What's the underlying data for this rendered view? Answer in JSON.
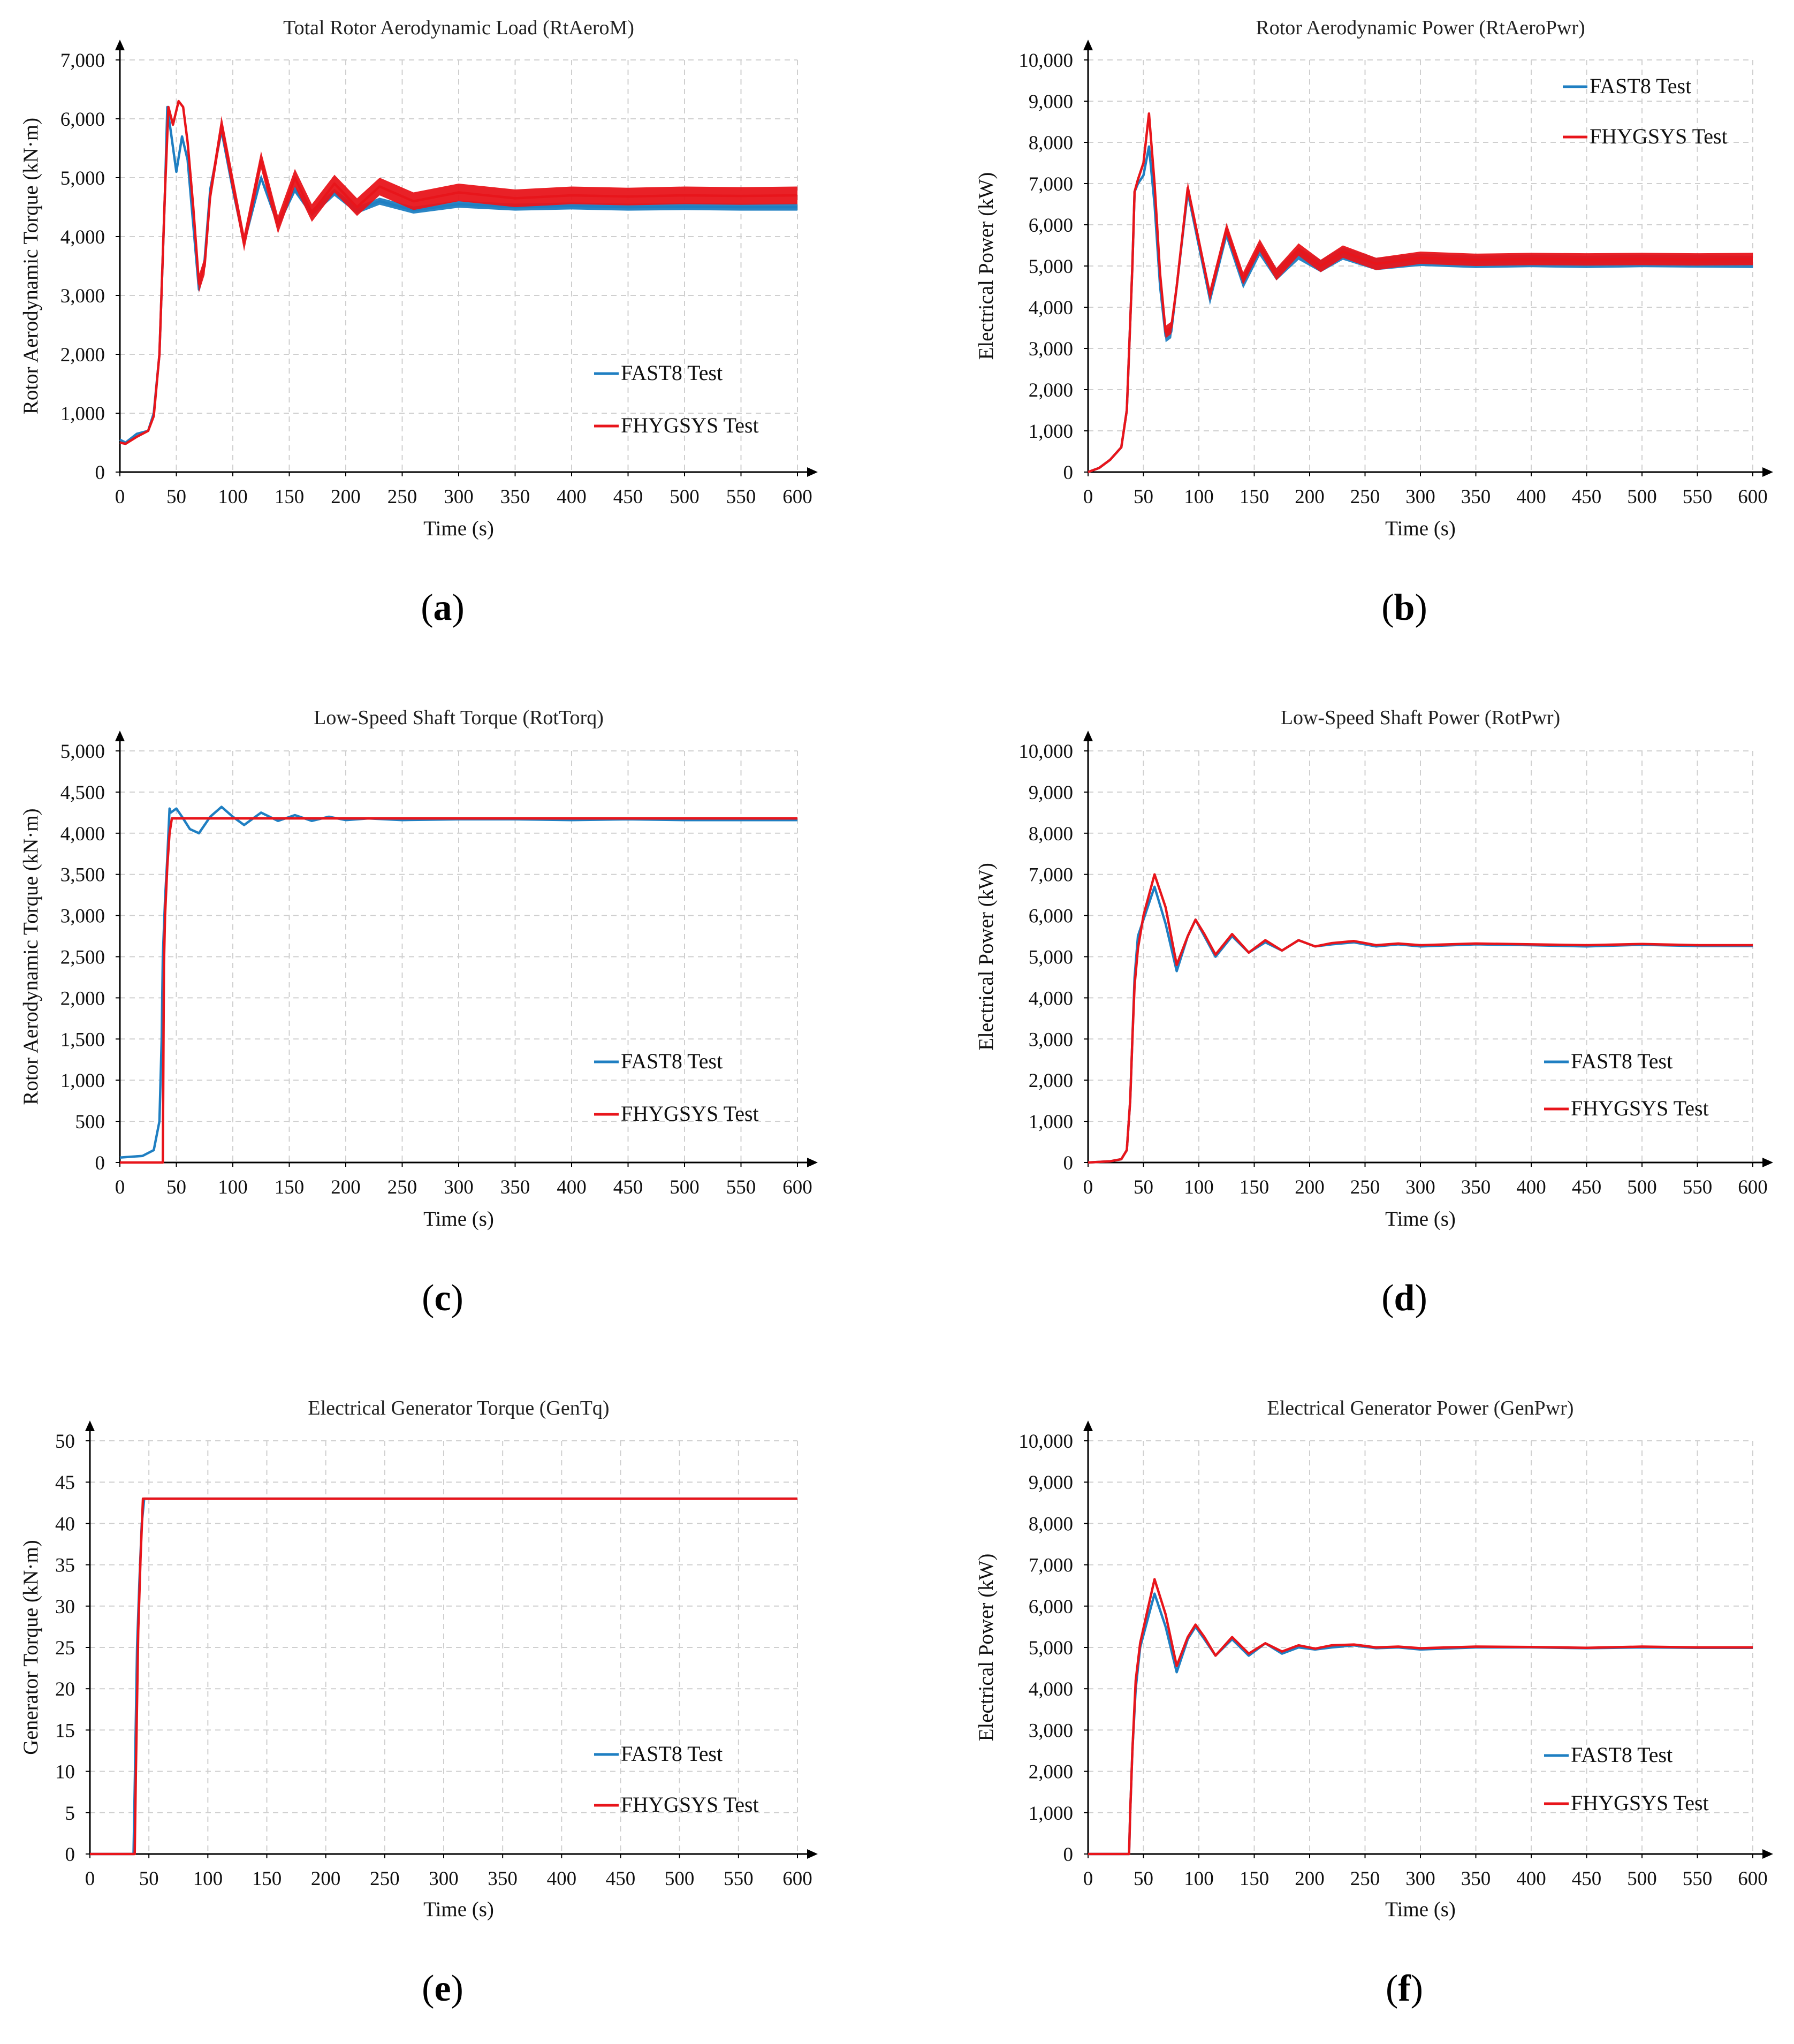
{
  "colors": {
    "fast8": "#1f7fc2",
    "fhygsys": "#e8151b",
    "grid": "#cfcfcf",
    "axis": "#000000"
  },
  "legend": {
    "fast8": "FAST8 Test",
    "fhygsys": "FHYGSYS Test"
  },
  "chart_data": [
    {
      "id": "a",
      "type": "line",
      "panel_label": "a",
      "title": "Total Rotor Aerodynamic Load (RtAeroM)",
      "xlabel": "Time (s)",
      "ylabel": "Rotor Aerodynamic Torque (kN·m)",
      "xlim": [
        0,
        600
      ],
      "ylim": [
        0,
        7000
      ],
      "xticks": [
        "0",
        "50",
        "100",
        "150",
        "200",
        "250",
        "300",
        "350",
        "400",
        "450",
        "500",
        "550",
        "600"
      ],
      "yticks": [
        "0",
        "1,000",
        "2,000",
        "3,000",
        "4,000",
        "5,000",
        "6,000",
        "7,000"
      ],
      "grid": true,
      "series": [
        {
          "name": "FAST8 Test",
          "color_key": "fast8",
          "band": 120,
          "x": [
            0,
            5,
            15,
            25,
            30,
            35,
            40,
            42,
            45,
            50,
            55,
            60,
            65,
            70,
            75,
            80,
            90,
            100,
            110,
            125,
            140,
            155,
            170,
            190,
            210,
            230,
            260,
            300,
            350,
            400,
            450,
            500,
            550,
            600
          ],
          "y": [
            550,
            500,
            650,
            700,
            1000,
            2000,
            4800,
            6200,
            5800,
            5100,
            5700,
            5300,
            4200,
            3100,
            3600,
            4800,
            5800,
            4800,
            3900,
            5000,
            4200,
            4800,
            4400,
            4750,
            4450,
            4600,
            4450,
            4550,
            4500,
            4520,
            4500,
            4510,
            4500,
            4500
          ]
        },
        {
          "name": "FHYGSYS Test",
          "color_key": "fhygsys",
          "band": 300,
          "x": [
            0,
            5,
            15,
            25,
            30,
            35,
            40,
            43,
            47,
            52,
            56,
            60,
            65,
            70,
            75,
            80,
            90,
            100,
            110,
            125,
            140,
            155,
            170,
            190,
            210,
            230,
            260,
            300,
            350,
            400,
            450,
            500,
            550,
            600
          ],
          "y": [
            500,
            480,
            600,
            700,
            950,
            2000,
            4800,
            6200,
            5900,
            6300,
            6200,
            5600,
            4500,
            3200,
            3500,
            4700,
            5900,
            4900,
            3900,
            5300,
            4200,
            5000,
            4400,
            4900,
            4500,
            4850,
            4600,
            4750,
            4650,
            4700,
            4680,
            4700,
            4690,
            4700
          ]
        }
      ]
    },
    {
      "id": "b",
      "type": "line",
      "panel_label": "b",
      "title": "Rotor Aerodynamic Power (RtAeroPwr)",
      "xlabel": "Time (s)",
      "ylabel": "Electrical Power (kW)",
      "xlim": [
        0,
        600
      ],
      "ylim": [
        0,
        10000
      ],
      "xticks": [
        "0",
        "50",
        "100",
        "150",
        "200",
        "250",
        "300",
        "350",
        "400",
        "450",
        "500",
        "550",
        "600"
      ],
      "yticks": [
        "0",
        "1,000",
        "2,000",
        "3,000",
        "4,000",
        "5,000",
        "6,000",
        "7,000",
        "8,000",
        "9,000",
        "10,000"
      ],
      "grid": true,
      "series": [
        {
          "name": "FAST8 Test",
          "color_key": "fast8",
          "band": 300,
          "x": [
            0,
            10,
            20,
            30,
            35,
            40,
            42,
            45,
            50,
            55,
            60,
            65,
            70,
            75,
            80,
            90,
            100,
            110,
            125,
            140,
            155,
            170,
            190,
            210,
            230,
            260,
            300,
            350,
            400,
            450,
            500,
            550,
            600
          ],
          "y": [
            0,
            100,
            300,
            600,
            1500,
            5000,
            6800,
            7000,
            7200,
            7900,
            6500,
            4500,
            3300,
            3400,
            4500,
            6800,
            5500,
            4200,
            5800,
            4600,
            5400,
            4800,
            5300,
            5000,
            5300,
            5050,
            5150,
            5100,
            5120,
            5100,
            5120,
            5110,
            5100
          ]
        },
        {
          "name": "FHYGSYS Test",
          "color_key": "fhygsys",
          "band": 300,
          "x": [
            0,
            10,
            20,
            30,
            35,
            40,
            42,
            45,
            50,
            55,
            60,
            65,
            70,
            75,
            80,
            90,
            100,
            110,
            125,
            140,
            155,
            170,
            190,
            210,
            230,
            260,
            300,
            350,
            400,
            450,
            500,
            550,
            600
          ],
          "y": [
            0,
            100,
            300,
            600,
            1500,
            5000,
            6800,
            7100,
            7500,
            8700,
            7000,
            4800,
            3400,
            3500,
            4500,
            6900,
            5600,
            4300,
            5900,
            4700,
            5500,
            4800,
            5400,
            5000,
            5350,
            5050,
            5200,
            5150,
            5170,
            5160,
            5170,
            5160,
            5170
          ]
        }
      ]
    },
    {
      "id": "c",
      "type": "line",
      "panel_label": "c",
      "title": "Low-Speed Shaft Torque (RotTorq)",
      "xlabel": "Time (s)",
      "ylabel": "Rotor Aerodynamic Torque (kN·m)",
      "xlim": [
        0,
        600
      ],
      "ylim": [
        0,
        5000
      ],
      "xticks": [
        "0",
        "50",
        "100",
        "150",
        "200",
        "250",
        "300",
        "350",
        "400",
        "450",
        "500",
        "550",
        "600"
      ],
      "yticks": [
        "0",
        "500",
        "1,000",
        "1,500",
        "2,000",
        "2,500",
        "3,000",
        "3,500",
        "4,000",
        "4,500",
        "5,000"
      ],
      "grid": true,
      "series": [
        {
          "name": "FAST8 Test",
          "color_key": "fast8",
          "band": 0,
          "x": [
            0,
            10,
            20,
            30,
            35,
            37,
            38,
            40,
            42,
            44,
            45,
            50,
            55,
            62,
            70,
            80,
            90,
            100,
            110,
            125,
            140,
            155,
            170,
            185,
            200,
            220,
            250,
            300,
            350,
            400,
            450,
            500,
            550,
            600
          ],
          "y": [
            60,
            70,
            80,
            150,
            500,
            1500,
            2500,
            3200,
            3700,
            4300,
            4250,
            4300,
            4200,
            4050,
            4000,
            4200,
            4320,
            4200,
            4100,
            4250,
            4150,
            4220,
            4150,
            4200,
            4160,
            4180,
            4160,
            4170,
            4170,
            4160,
            4170,
            4160,
            4160,
            4160
          ]
        },
        {
          "name": "FHYGSYS Test",
          "color_key": "fhygsys",
          "band": 0,
          "x": [
            0,
            30,
            38,
            39,
            40,
            42,
            44,
            46,
            50,
            600
          ],
          "y": [
            0,
            0,
            0,
            2400,
            3000,
            3600,
            4000,
            4180,
            4180,
            4180
          ]
        }
      ]
    },
    {
      "id": "d",
      "type": "line",
      "panel_label": "d",
      "title": "Low-Speed Shaft Power (RotPwr)",
      "xlabel": "Time (s)",
      "ylabel": "Electrical Power (kW)",
      "xlim": [
        0,
        600
      ],
      "ylim": [
        0,
        10000
      ],
      "xticks": [
        "0",
        "50",
        "100",
        "150",
        "200",
        "250",
        "300",
        "350",
        "400",
        "450",
        "500",
        "550",
        "600"
      ],
      "yticks": [
        "0",
        "1,000",
        "2,000",
        "3,000",
        "4,000",
        "5,000",
        "6,000",
        "7,000",
        "8,000",
        "9,000",
        "10,000"
      ],
      "grid": true,
      "series": [
        {
          "name": "FAST8 Test",
          "color_key": "fast8",
          "band": 0,
          "x": [
            0,
            20,
            30,
            35,
            38,
            40,
            42,
            45,
            50,
            60,
            70,
            80,
            90,
            97,
            105,
            115,
            130,
            145,
            160,
            175,
            190,
            205,
            220,
            240,
            260,
            280,
            300,
            350,
            400,
            450,
            500,
            550,
            600
          ],
          "y": [
            0,
            30,
            80,
            300,
            1500,
            3000,
            4500,
            5500,
            5900,
            6700,
            5800,
            4650,
            5500,
            5900,
            5500,
            5000,
            5500,
            5100,
            5350,
            5150,
            5400,
            5250,
            5300,
            5350,
            5250,
            5300,
            5250,
            5300,
            5280,
            5250,
            5290,
            5260,
            5260
          ]
        },
        {
          "name": "FHYGSYS Test",
          "color_key": "fhygsys",
          "band": 0,
          "x": [
            0,
            20,
            30,
            35,
            38,
            40,
            42,
            45,
            50,
            60,
            70,
            80,
            90,
            97,
            105,
            115,
            130,
            145,
            160,
            175,
            190,
            205,
            220,
            240,
            260,
            280,
            300,
            350,
            400,
            450,
            500,
            550,
            600
          ],
          "y": [
            0,
            30,
            80,
            300,
            1500,
            3000,
            4300,
            5200,
            6000,
            7000,
            6200,
            4800,
            5500,
            5900,
            5550,
            5050,
            5550,
            5100,
            5400,
            5150,
            5400,
            5250,
            5330,
            5380,
            5280,
            5320,
            5280,
            5320,
            5300,
            5280,
            5310,
            5280,
            5280
          ]
        }
      ]
    },
    {
      "id": "e",
      "type": "line",
      "panel_label": "e",
      "title": "Electrical Generator Torque (GenTq)",
      "xlabel": "Time (s)",
      "ylabel": "Generator Torque (kN·m)",
      "xlim": [
        0,
        600
      ],
      "ylim": [
        0,
        50
      ],
      "xticks": [
        "0",
        "50",
        "100",
        "150",
        "200",
        "250",
        "300",
        "350",
        "400",
        "450",
        "500",
        "550",
        "600"
      ],
      "yticks": [
        "0",
        "5",
        "10",
        "15",
        "20",
        "25",
        "30",
        "35",
        "40",
        "45",
        "50"
      ],
      "grid": true,
      "series": [
        {
          "name": "FAST8 Test",
          "color_key": "fast8",
          "band": 0,
          "x": [
            0,
            37,
            38,
            40,
            42,
            44,
            46,
            600
          ],
          "y": [
            0,
            0,
            8,
            25,
            33,
            40,
            43,
            43
          ]
        },
        {
          "name": "FHYGSYS Test",
          "color_key": "fhygsys",
          "band": 0,
          "x": [
            0,
            38,
            39,
            41,
            43,
            45,
            600
          ],
          "y": [
            0,
            0,
            10,
            27,
            36,
            43,
            43
          ]
        }
      ]
    },
    {
      "id": "f",
      "type": "line",
      "panel_label": "f",
      "title": "Electrical Generator Power (GenPwr)",
      "xlabel": "Time (s)",
      "ylabel": "Electrical Power (kW)",
      "xlim": [
        0,
        600
      ],
      "ylim": [
        0,
        10000
      ],
      "xticks": [
        "0",
        "50",
        "100",
        "150",
        "200",
        "250",
        "300",
        "350",
        "400",
        "450",
        "500",
        "550",
        "600"
      ],
      "yticks": [
        "0",
        "1,000",
        "2,000",
        "3,000",
        "4,000",
        "5,000",
        "6,000",
        "7,000",
        "8,000",
        "9,000",
        "10,000"
      ],
      "grid": true,
      "series": [
        {
          "name": "FAST8 Test",
          "color_key": "fast8",
          "band": 0,
          "x": [
            0,
            37,
            38,
            40,
            43,
            47,
            52,
            60,
            70,
            80,
            90,
            97,
            105,
            115,
            130,
            145,
            160,
            175,
            190,
            205,
            220,
            240,
            260,
            280,
            300,
            350,
            400,
            450,
            500,
            550,
            600
          ],
          "y": [
            0,
            0,
            1000,
            2500,
            4000,
            5000,
            5500,
            6300,
            5500,
            4400,
            5200,
            5500,
            5200,
            4800,
            5200,
            4800,
            5100,
            4850,
            5000,
            4950,
            5000,
            5050,
            4980,
            5000,
            4950,
            5000,
            5000,
            4980,
            5000,
            4990,
            4990
          ]
        },
        {
          "name": "FHYGSYS Test",
          "color_key": "fhygsys",
          "band": 0,
          "x": [
            0,
            37,
            38,
            40,
            43,
            47,
            52,
            60,
            70,
            80,
            90,
            97,
            105,
            115,
            130,
            145,
            160,
            175,
            190,
            205,
            220,
            240,
            260,
            280,
            300,
            350,
            400,
            450,
            500,
            550,
            600
          ],
          "y": [
            0,
            0,
            1000,
            2500,
            4200,
            5100,
            5700,
            6650,
            5800,
            4550,
            5250,
            5550,
            5250,
            4800,
            5250,
            4850,
            5100,
            4900,
            5050,
            4970,
            5050,
            5070,
            5000,
            5020,
            4980,
            5020,
            5010,
            4990,
            5020,
            5000,
            5000
          ]
        }
      ]
    }
  ]
}
